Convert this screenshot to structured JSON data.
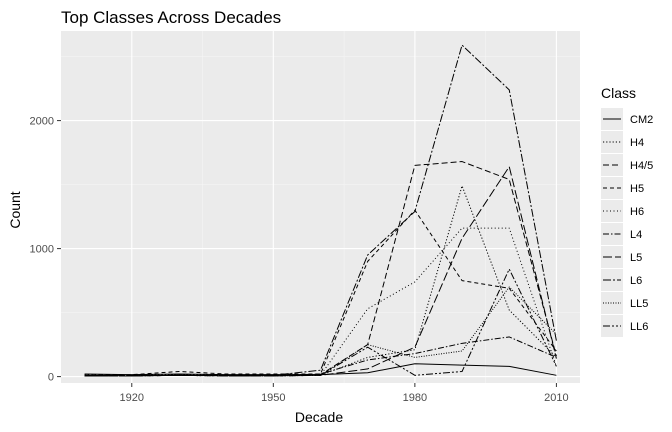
{
  "chart_data": {
    "type": "line",
    "title": "Top Classes Across Decades",
    "xlabel": "Decade",
    "ylabel": "Count",
    "legend_title": "Class",
    "legend_position": "right",
    "grid": true,
    "xlim": [
      1905,
      2015
    ],
    "ylim": [
      -50,
      2700
    ],
    "xticks": [
      1920,
      1950,
      1980,
      2010
    ],
    "yticks": [
      0,
      1000,
      2000
    ],
    "colors": {
      "panel": "#ebebeb",
      "grid_major": "#ffffff",
      "grid_minor": "#f5f5f5",
      "line": "#000000"
    },
    "x": [
      1910,
      1920,
      1930,
      1940,
      1950,
      1960,
      1970,
      1980,
      1990,
      2000,
      2010
    ],
    "series": [
      {
        "name": "CM2",
        "dash": "",
        "values": [
          20,
          15,
          20,
          15,
          15,
          15,
          30,
          100,
          90,
          80,
          10
        ]
      },
      {
        "name": "H4",
        "dash": "1.2,2",
        "values": [
          10,
          10,
          15,
          10,
          10,
          10,
          150,
          210,
          1490,
          520,
          150
        ]
      },
      {
        "name": "H4/5",
        "dash": "6,3",
        "values": [
          5,
          5,
          10,
          10,
          10,
          15,
          250,
          1650,
          1680,
          1540,
          160
        ]
      },
      {
        "name": "H5",
        "dash": "4,3",
        "values": [
          10,
          15,
          40,
          20,
          20,
          20,
          900,
          1300,
          750,
          690,
          200
        ]
      },
      {
        "name": "H6",
        "dash": "1,2.5",
        "values": [
          15,
          10,
          15,
          10,
          10,
          10,
          530,
          740,
          1160,
          1160,
          80
        ]
      },
      {
        "name": "L4",
        "dash": "6,2,1.5,2",
        "values": [
          10,
          10,
          10,
          10,
          10,
          20,
          130,
          180,
          260,
          310,
          150
        ]
      },
      {
        "name": "L5",
        "dash": "9,3",
        "values": [
          5,
          5,
          10,
          5,
          5,
          10,
          60,
          230,
          1080,
          1640,
          140
        ]
      },
      {
        "name": "L6",
        "dash": "8,2,2,2",
        "values": [
          10,
          10,
          10,
          10,
          10,
          50,
          950,
          1290,
          2590,
          2240,
          280
        ]
      },
      {
        "name": "LL5",
        "dash": "1,1.5",
        "values": [
          5,
          5,
          10,
          5,
          5,
          10,
          250,
          150,
          200,
          700,
          330
        ]
      },
      {
        "name": "LL6",
        "dash": "7,2,2,2,2,2",
        "values": [
          5,
          5,
          10,
          5,
          5,
          10,
          230,
          10,
          40,
          840,
          80
        ]
      }
    ]
  }
}
